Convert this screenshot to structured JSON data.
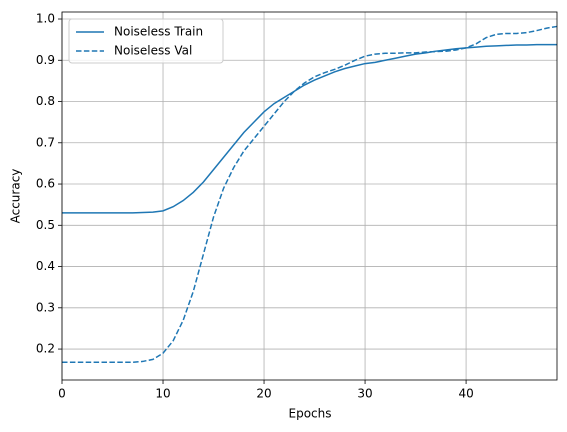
{
  "chart_data": {
    "type": "line",
    "x_label": "Epochs",
    "y_label": "Accuracy",
    "x": [
      0,
      1,
      2,
      3,
      4,
      5,
      6,
      7,
      8,
      9,
      10,
      11,
      12,
      13,
      14,
      15,
      16,
      17,
      18,
      19,
      20,
      21,
      22,
      23,
      24,
      25,
      26,
      27,
      28,
      29,
      30,
      31,
      32,
      33,
      34,
      35,
      36,
      37,
      38,
      39,
      40,
      41,
      42,
      43,
      44,
      45,
      46,
      47,
      48,
      49
    ],
    "series": [
      {
        "name": "Noiseless Train",
        "color": "#1f77b4",
        "linestyle": "solid",
        "values": [
          0.53,
          0.53,
          0.53,
          0.53,
          0.53,
          0.53,
          0.53,
          0.53,
          0.531,
          0.532,
          0.535,
          0.545,
          0.56,
          0.58,
          0.605,
          0.635,
          0.665,
          0.695,
          0.725,
          0.75,
          0.775,
          0.795,
          0.81,
          0.825,
          0.84,
          0.852,
          0.862,
          0.872,
          0.88,
          0.886,
          0.892,
          0.895,
          0.9,
          0.905,
          0.91,
          0.915,
          0.918,
          0.922,
          0.925,
          0.928,
          0.93,
          0.932,
          0.934,
          0.935,
          0.936,
          0.937,
          0.937,
          0.938,
          0.938,
          0.938
        ]
      },
      {
        "name": "Noiseless Val",
        "color": "#1f77b4",
        "linestyle": "dashed",
        "values": [
          0.168,
          0.168,
          0.168,
          0.168,
          0.168,
          0.168,
          0.168,
          0.168,
          0.17,
          0.175,
          0.19,
          0.22,
          0.27,
          0.34,
          0.43,
          0.52,
          0.59,
          0.64,
          0.68,
          0.71,
          0.74,
          0.77,
          0.8,
          0.825,
          0.845,
          0.86,
          0.87,
          0.878,
          0.888,
          0.9,
          0.91,
          0.915,
          0.917,
          0.917,
          0.918,
          0.918,
          0.92,
          0.921,
          0.922,
          0.925,
          0.93,
          0.94,
          0.955,
          0.963,
          0.965,
          0.965,
          0.967,
          0.972,
          0.978,
          0.982
        ]
      }
    ],
    "xlim": [
      0,
      49
    ],
    "xticks": [
      0,
      10,
      20,
      30,
      40
    ],
    "ylim": [
      0.125,
      1.017
    ],
    "yticks": [
      0.2,
      0.3,
      0.4,
      0.5,
      0.6,
      0.7,
      0.8,
      0.9,
      {
        "value": 1,
        "label": "1.0"
      }
    ],
    "grid": true,
    "legend": "upper left"
  }
}
